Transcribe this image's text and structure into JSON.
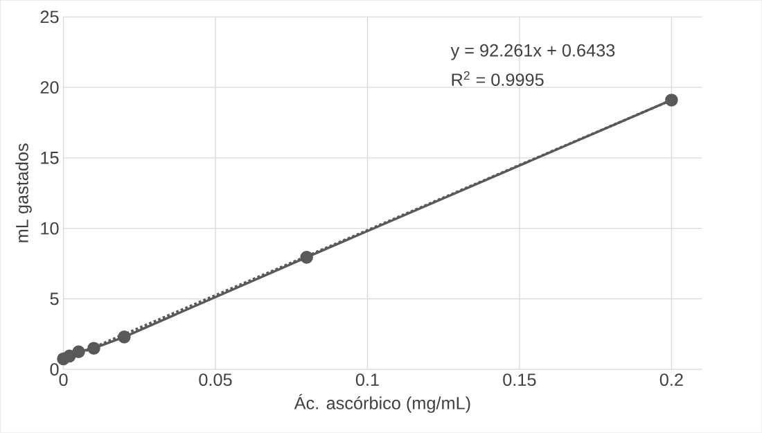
{
  "chart_data": {
    "type": "line",
    "xlabel": "Ác. ascórbico (mg/mL)",
    "ylabel": "mL gastados",
    "xlim": [
      0,
      0.21
    ],
    "ylim": [
      0,
      25
    ],
    "xticks": [
      0,
      0.05,
      0.1,
      0.15,
      0.2
    ],
    "yticks": [
      0,
      5,
      10,
      15,
      20,
      25
    ],
    "grid": true,
    "marker": "circle",
    "series": [
      {
        "color": "#595959",
        "line_style": "solid",
        "x": [
          0,
          0.002,
          0.005,
          0.01,
          0.02,
          0.08,
          0.2
        ],
        "values": [
          0.75,
          0.95,
          1.25,
          1.5,
          2.3,
          7.95,
          19.1
        ]
      },
      {
        "color": "#595959",
        "line_style": "dotted",
        "marker": "none",
        "x": [
          0,
          0.2
        ],
        "values": [
          0.64,
          19.1
        ]
      }
    ],
    "annotations": [
      {
        "text": "y = 92.261x + 0.6433"
      },
      {
        "text": "R$^{2}$ = 0.9995"
      }
    ]
  }
}
